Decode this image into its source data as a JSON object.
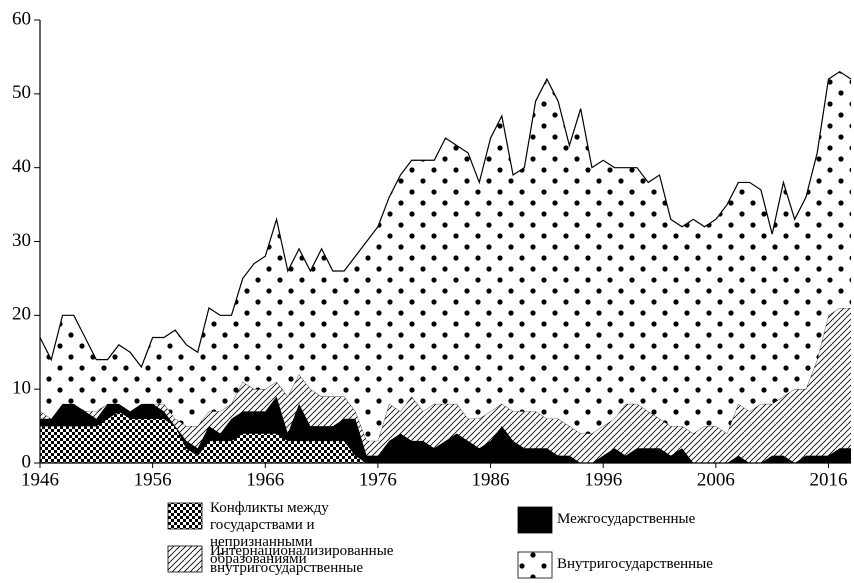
{
  "chart_data": {
    "type": "stacked_area",
    "x": [
      1946,
      1947,
      1948,
      1949,
      1950,
      1951,
      1952,
      1953,
      1954,
      1955,
      1956,
      1957,
      1958,
      1959,
      1960,
      1961,
      1962,
      1963,
      1964,
      1965,
      1966,
      1967,
      1968,
      1969,
      1970,
      1971,
      1972,
      1973,
      1974,
      1975,
      1976,
      1977,
      1978,
      1979,
      1980,
      1981,
      1982,
      1983,
      1984,
      1985,
      1986,
      1987,
      1988,
      1989,
      1990,
      1991,
      1992,
      1993,
      1994,
      1995,
      1996,
      1997,
      1998,
      1999,
      2000,
      2001,
      2002,
      2003,
      2004,
      2005,
      2006,
      2007,
      2008,
      2009,
      2010,
      2011,
      2012,
      2013,
      2014,
      2015,
      2016,
      2017,
      2018
    ],
    "series": [
      {
        "name": "Конфликты между государствами и непризнанными образованиями",
        "pattern": "checker",
        "color": "#000000",
        "values": [
          5,
          5,
          5,
          5,
          5,
          5,
          6,
          7,
          6,
          6,
          6,
          6,
          5,
          2,
          1,
          3,
          3,
          3,
          4,
          4,
          4,
          4,
          3,
          3,
          3,
          3,
          3,
          3,
          1,
          0,
          0,
          0,
          0,
          0,
          0,
          0,
          0,
          0,
          0,
          0,
          0,
          0,
          0,
          0,
          0,
          0,
          0,
          0,
          0,
          0,
          0,
          0,
          0,
          0,
          0,
          0,
          0,
          0,
          0,
          0,
          0,
          0,
          0,
          0,
          0,
          0,
          0,
          0,
          0,
          0,
          0,
          0,
          0
        ]
      },
      {
        "name": "Межгосударственные",
        "pattern": "solid",
        "color": "#000000",
        "values": [
          1,
          1,
          3,
          3,
          2,
          1,
          2,
          1,
          1,
          2,
          2,
          1,
          0,
          1,
          1,
          2,
          1,
          3,
          3,
          3,
          3,
          5,
          1,
          5,
          2,
          2,
          2,
          3,
          5,
          1,
          1,
          3,
          4,
          3,
          3,
          2,
          3,
          4,
          3,
          2,
          3,
          5,
          3,
          2,
          2,
          2,
          1,
          1,
          0,
          0,
          1,
          2,
          1,
          2,
          2,
          2,
          1,
          2,
          0,
          0,
          0,
          0,
          1,
          0,
          0,
          1,
          1,
          0,
          1,
          1,
          1,
          2,
          2
        ]
      },
      {
        "name": "Интернационализированные внутригосударственные",
        "pattern": "hatch",
        "color": "#000000",
        "values": [
          1,
          0,
          0,
          0,
          0,
          1,
          0,
          0,
          0,
          0,
          0,
          1,
          1,
          2,
          3,
          2,
          3,
          2,
          4,
          3,
          3,
          2,
          5,
          4,
          5,
          4,
          4,
          3,
          1,
          2,
          2,
          5,
          3,
          6,
          4,
          6,
          5,
          4,
          3,
          4,
          4,
          3,
          4,
          5,
          5,
          4,
          5,
          4,
          4,
          4,
          4,
          4,
          7,
          6,
          5,
          4,
          4,
          3,
          4,
          5,
          5,
          4,
          7,
          7,
          8,
          7,
          8,
          10,
          9,
          13,
          19,
          19,
          19
        ]
      },
      {
        "name": "Внутригосударственные",
        "pattern": "dots",
        "color": "#000000",
        "values": [
          10,
          8,
          12,
          12,
          10,
          7,
          6,
          8,
          8,
          5,
          9,
          9,
          12,
          11,
          10,
          14,
          13,
          12,
          14,
          17,
          18,
          22,
          17,
          17,
          16,
          20,
          17,
          17,
          21,
          27,
          29,
          28,
          32,
          32,
          34,
          33,
          36,
          35,
          36,
          32,
          37,
          39,
          32,
          33,
          42,
          46,
          43,
          38,
          44,
          36,
          36,
          34,
          32,
          32,
          31,
          33,
          28,
          27,
          29,
          27,
          28,
          31,
          30,
          31,
          29,
          23,
          29,
          23,
          26,
          28,
          32,
          32,
          31
        ]
      }
    ],
    "xlim": [
      1946,
      2018
    ],
    "xticks": [
      1946,
      1956,
      1966,
      1976,
      1986,
      1996,
      2006,
      2016
    ],
    "ylim": [
      0,
      60
    ],
    "yticks": [
      0,
      10,
      20,
      30,
      40,
      50,
      60
    ],
    "grid": false
  }
}
